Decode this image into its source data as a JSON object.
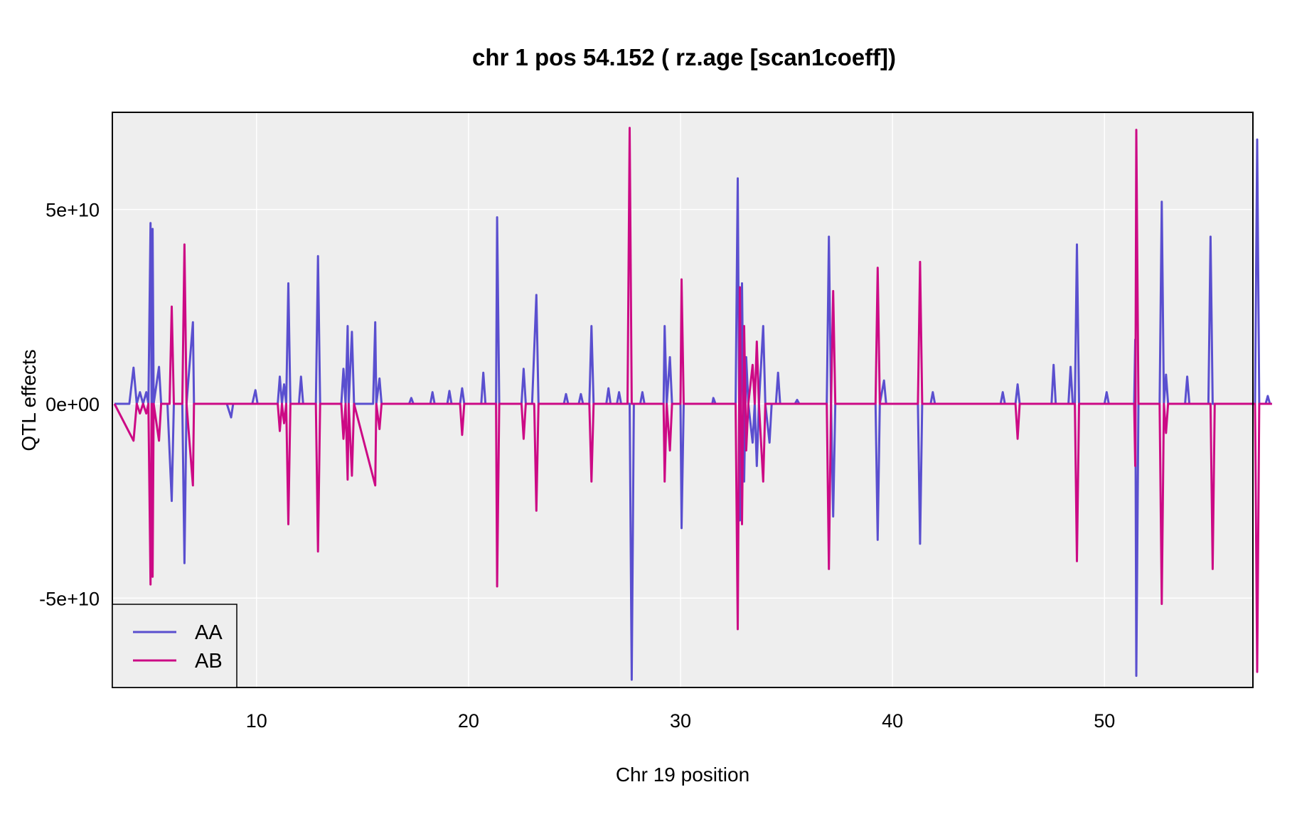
{
  "chart_data": {
    "type": "line",
    "title": "chr 1 pos 54.152 ( rz.age  [scan1coeff])",
    "xlabel": "Chr 19 position",
    "ylabel": "QTL effects",
    "xlim": [
      3.2,
      57.0
    ],
    "ylim": [
      -73000000000,
      75000000000
    ],
    "x_ticks": [
      10,
      20,
      30,
      40,
      50
    ],
    "x_tick_labels": [
      "10",
      "20",
      "30",
      "40",
      "50"
    ],
    "y_ticks": [
      -50000000000,
      0,
      50000000000
    ],
    "y_tick_labels": [
      "-5e+10",
      "0e+00",
      "5e+10"
    ],
    "grid": true,
    "legend_position": "bottom-left",
    "series": [
      {
        "name": "AA",
        "color": "#5a4fcf",
        "points": [
          [
            3.3,
            0
          ],
          [
            4.0,
            0
          ],
          [
            4.2,
            9300000000
          ],
          [
            4.35,
            0
          ],
          [
            4.5,
            3000000000
          ],
          [
            4.65,
            0
          ],
          [
            4.8,
            3000000000
          ],
          [
            4.9,
            0
          ],
          [
            5.0,
            46500000000
          ],
          [
            5.05,
            0
          ],
          [
            5.1,
            45000000000
          ],
          [
            5.15,
            0
          ],
          [
            5.4,
            9500000000
          ],
          [
            5.5,
            0
          ],
          [
            5.8,
            0
          ],
          [
            6.0,
            -25000000000
          ],
          [
            6.1,
            0
          ],
          [
            6.5,
            0
          ],
          [
            6.6,
            -41000000000
          ],
          [
            6.7,
            0
          ],
          [
            7.0,
            21000000000
          ],
          [
            7.05,
            0
          ],
          [
            8.6,
            0
          ],
          [
            8.8,
            -3500000000
          ],
          [
            8.9,
            0
          ],
          [
            9.8,
            0
          ],
          [
            9.95,
            3500000000
          ],
          [
            10.05,
            0
          ],
          [
            11.0,
            0
          ],
          [
            11.1,
            7000000000
          ],
          [
            11.2,
            0
          ],
          [
            11.3,
            5000000000
          ],
          [
            11.4,
            0
          ],
          [
            11.5,
            31000000000
          ],
          [
            11.6,
            0
          ],
          [
            12.0,
            0
          ],
          [
            12.1,
            7000000000
          ],
          [
            12.2,
            0
          ],
          [
            12.8,
            0
          ],
          [
            12.9,
            38000000000
          ],
          [
            13.0,
            0
          ],
          [
            14.0,
            0
          ],
          [
            14.1,
            9000000000
          ],
          [
            14.2,
            0
          ],
          [
            14.3,
            20000000000
          ],
          [
            14.35,
            0
          ],
          [
            14.5,
            18500000000
          ],
          [
            14.6,
            0
          ],
          [
            15.5,
            0
          ],
          [
            15.6,
            21000000000
          ],
          [
            15.65,
            0
          ],
          [
            15.8,
            6500000000
          ],
          [
            15.9,
            0
          ],
          [
            17.2,
            0
          ],
          [
            17.3,
            1500000000
          ],
          [
            17.4,
            0
          ],
          [
            18.2,
            0
          ],
          [
            18.3,
            3000000000
          ],
          [
            18.4,
            0
          ],
          [
            19.0,
            0
          ],
          [
            19.1,
            3300000000
          ],
          [
            19.2,
            0
          ],
          [
            19.6,
            0
          ],
          [
            19.7,
            4000000000
          ],
          [
            19.8,
            0
          ],
          [
            20.6,
            0
          ],
          [
            20.7,
            8000000000
          ],
          [
            20.8,
            0
          ],
          [
            21.3,
            0
          ],
          [
            21.35,
            48000000000
          ],
          [
            21.45,
            0
          ],
          [
            22.5,
            0
          ],
          [
            22.6,
            9000000000
          ],
          [
            22.7,
            0
          ],
          [
            23.0,
            0
          ],
          [
            23.2,
            28000000000
          ],
          [
            23.3,
            0
          ],
          [
            24.5,
            0
          ],
          [
            24.6,
            2500000000
          ],
          [
            24.7,
            0
          ],
          [
            25.2,
            0
          ],
          [
            25.3,
            2500000000
          ],
          [
            25.4,
            0
          ],
          [
            25.7,
            0
          ],
          [
            25.8,
            20000000000
          ],
          [
            25.9,
            0
          ],
          [
            26.5,
            0
          ],
          [
            26.6,
            4000000000
          ],
          [
            26.7,
            0
          ],
          [
            27.0,
            0
          ],
          [
            27.1,
            3000000000
          ],
          [
            27.2,
            0
          ],
          [
            27.6,
            0
          ],
          [
            27.7,
            -71000000000
          ],
          [
            27.8,
            0
          ],
          [
            28.1,
            0
          ],
          [
            28.2,
            3000000000
          ],
          [
            28.3,
            0
          ],
          [
            29.2,
            0
          ],
          [
            29.25,
            20000000000
          ],
          [
            29.35,
            0
          ],
          [
            29.5,
            12000000000
          ],
          [
            29.6,
            0
          ],
          [
            30.0,
            0
          ],
          [
            30.05,
            -32000000000
          ],
          [
            30.15,
            0
          ],
          [
            31.5,
            0
          ],
          [
            31.55,
            1500000000
          ],
          [
            31.65,
            0
          ],
          [
            32.6,
            0
          ],
          [
            32.7,
            58000000000
          ],
          [
            32.8,
            -30000000000
          ],
          [
            32.9,
            31000000000
          ],
          [
            33.0,
            -20000000000
          ],
          [
            33.1,
            12000000000
          ],
          [
            33.2,
            0
          ],
          [
            33.4,
            -10000000000
          ],
          [
            33.5,
            0
          ],
          [
            33.6,
            -16000000000
          ],
          [
            33.7,
            0
          ],
          [
            33.9,
            20000000000
          ],
          [
            34.0,
            0
          ],
          [
            34.2,
            -10000000000
          ],
          [
            34.3,
            0
          ],
          [
            34.5,
            0
          ],
          [
            34.6,
            8000000000
          ],
          [
            34.7,
            0
          ],
          [
            35.4,
            0
          ],
          [
            35.5,
            1000000000
          ],
          [
            35.6,
            0
          ],
          [
            36.9,
            0
          ],
          [
            37.0,
            43000000000
          ],
          [
            37.1,
            0
          ],
          [
            37.2,
            -29000000000
          ],
          [
            37.3,
            0
          ],
          [
            39.2,
            0
          ],
          [
            39.3,
            -35000000000
          ],
          [
            39.4,
            0
          ],
          [
            39.6,
            6000000000
          ],
          [
            39.7,
            0
          ],
          [
            41.2,
            0
          ],
          [
            41.3,
            -36000000000
          ],
          [
            41.4,
            0
          ],
          [
            41.8,
            0
          ],
          [
            41.9,
            3000000000
          ],
          [
            42.0,
            0
          ],
          [
            45.1,
            0
          ],
          [
            45.2,
            3000000000
          ],
          [
            45.3,
            0
          ],
          [
            45.8,
            0
          ],
          [
            45.9,
            5000000000
          ],
          [
            46.0,
            0
          ],
          [
            47.5,
            0
          ],
          [
            47.6,
            10000000000
          ],
          [
            47.7,
            0
          ],
          [
            48.3,
            0
          ],
          [
            48.4,
            9500000000
          ],
          [
            48.5,
            0
          ],
          [
            48.6,
            0
          ],
          [
            48.7,
            41000000000
          ],
          [
            48.8,
            0
          ],
          [
            50.0,
            0
          ],
          [
            50.1,
            3000000000
          ],
          [
            50.2,
            0
          ],
          [
            51.4,
            0
          ],
          [
            51.45,
            16500000000
          ],
          [
            51.5,
            -70000000000
          ],
          [
            51.6,
            0
          ],
          [
            52.6,
            0
          ],
          [
            52.7,
            52000000000
          ],
          [
            52.8,
            0
          ],
          [
            52.9,
            7500000000
          ],
          [
            53.0,
            0
          ],
          [
            53.8,
            0
          ],
          [
            53.9,
            7000000000
          ],
          [
            54.0,
            0
          ],
          [
            54.9,
            0
          ],
          [
            55.0,
            43000000000
          ],
          [
            55.1,
            0
          ],
          [
            57.1,
            0
          ],
          [
            57.2,
            68000000000
          ],
          [
            57.3,
            0
          ],
          [
            57.6,
            0
          ],
          [
            57.7,
            2000000000
          ],
          [
            57.8,
            0
          ],
          [
            57.9,
            0
          ]
        ]
      },
      {
        "name": "AB",
        "color": "#cc0a85",
        "points": [
          [
            3.3,
            0
          ],
          [
            4.2,
            -9500000000
          ],
          [
            4.35,
            0
          ],
          [
            4.5,
            -2500000000
          ],
          [
            4.65,
            0
          ],
          [
            4.8,
            -2500000000
          ],
          [
            4.9,
            0
          ],
          [
            5.0,
            -46500000000
          ],
          [
            5.05,
            0
          ],
          [
            5.1,
            -44500000000
          ],
          [
            5.15,
            0
          ],
          [
            5.4,
            -9500000000
          ],
          [
            5.5,
            0
          ],
          [
            5.9,
            0
          ],
          [
            6.0,
            25000000000
          ],
          [
            6.1,
            0
          ],
          [
            6.5,
            0
          ],
          [
            6.6,
            41000000000
          ],
          [
            6.7,
            0
          ],
          [
            7.0,
            -21000000000
          ],
          [
            7.05,
            0
          ],
          [
            11.0,
            0
          ],
          [
            11.1,
            -7000000000
          ],
          [
            11.2,
            0
          ],
          [
            11.3,
            -5000000000
          ],
          [
            11.4,
            0
          ],
          [
            11.5,
            -31000000000
          ],
          [
            11.6,
            0
          ],
          [
            12.8,
            0
          ],
          [
            12.9,
            -38000000000
          ],
          [
            13.0,
            0
          ],
          [
            14.0,
            0
          ],
          [
            14.1,
            -9000000000
          ],
          [
            14.2,
            0
          ],
          [
            14.3,
            -19500000000
          ],
          [
            14.35,
            0
          ],
          [
            14.5,
            -18500000000
          ],
          [
            14.6,
            0
          ],
          [
            15.6,
            -21000000000
          ],
          [
            15.65,
            0
          ],
          [
            15.8,
            -6500000000
          ],
          [
            15.9,
            0
          ],
          [
            19.6,
            0
          ],
          [
            19.7,
            -8000000000
          ],
          [
            19.8,
            0
          ],
          [
            21.3,
            0
          ],
          [
            21.35,
            -47000000000
          ],
          [
            21.45,
            0
          ],
          [
            22.5,
            0
          ],
          [
            22.6,
            -9000000000
          ],
          [
            22.7,
            0
          ],
          [
            23.1,
            0
          ],
          [
            23.2,
            -27500000000
          ],
          [
            23.3,
            0
          ],
          [
            25.7,
            0
          ],
          [
            25.8,
            -20000000000
          ],
          [
            25.9,
            0
          ],
          [
            27.5,
            0
          ],
          [
            27.6,
            71000000000
          ],
          [
            27.7,
            0
          ],
          [
            29.2,
            0
          ],
          [
            29.25,
            -20000000000
          ],
          [
            29.35,
            0
          ],
          [
            29.5,
            -12000000000
          ],
          [
            29.6,
            0
          ],
          [
            30.0,
            0
          ],
          [
            30.05,
            32000000000
          ],
          [
            30.15,
            0
          ],
          [
            32.6,
            0
          ],
          [
            32.7,
            -58000000000
          ],
          [
            32.8,
            30000000000
          ],
          [
            32.9,
            -31000000000
          ],
          [
            33.0,
            20000000000
          ],
          [
            33.1,
            -12000000000
          ],
          [
            33.2,
            0
          ],
          [
            33.4,
            10000000000
          ],
          [
            33.5,
            0
          ],
          [
            33.6,
            16000000000
          ],
          [
            33.7,
            0
          ],
          [
            33.9,
            -20000000000
          ],
          [
            34.0,
            0
          ],
          [
            36.9,
            0
          ],
          [
            37.0,
            -42500000000
          ],
          [
            37.1,
            0
          ],
          [
            37.2,
            29000000000
          ],
          [
            37.3,
            0
          ],
          [
            39.2,
            0
          ],
          [
            39.3,
            35000000000
          ],
          [
            39.4,
            0
          ],
          [
            41.2,
            0
          ],
          [
            41.3,
            36500000000
          ],
          [
            41.4,
            0
          ],
          [
            45.8,
            0
          ],
          [
            45.9,
            -9000000000
          ],
          [
            46.0,
            0
          ],
          [
            48.6,
            0
          ],
          [
            48.7,
            -40500000000
          ],
          [
            48.8,
            0
          ],
          [
            51.4,
            0
          ],
          [
            51.45,
            -16000000000
          ],
          [
            51.5,
            70500000000
          ],
          [
            51.6,
            0
          ],
          [
            52.6,
            0
          ],
          [
            52.7,
            -51500000000
          ],
          [
            52.8,
            0
          ],
          [
            52.9,
            -7500000000
          ],
          [
            53.0,
            0
          ],
          [
            55.0,
            0
          ],
          [
            55.1,
            -42500000000
          ],
          [
            55.2,
            0
          ],
          [
            57.1,
            0
          ],
          [
            57.2,
            -69000000000
          ],
          [
            57.3,
            0
          ],
          [
            57.9,
            0
          ]
        ]
      }
    ]
  },
  "legend": {
    "items": [
      {
        "label": "AA",
        "color": "#5a4fcf"
      },
      {
        "label": "AB",
        "color": "#cc0a85"
      }
    ]
  }
}
